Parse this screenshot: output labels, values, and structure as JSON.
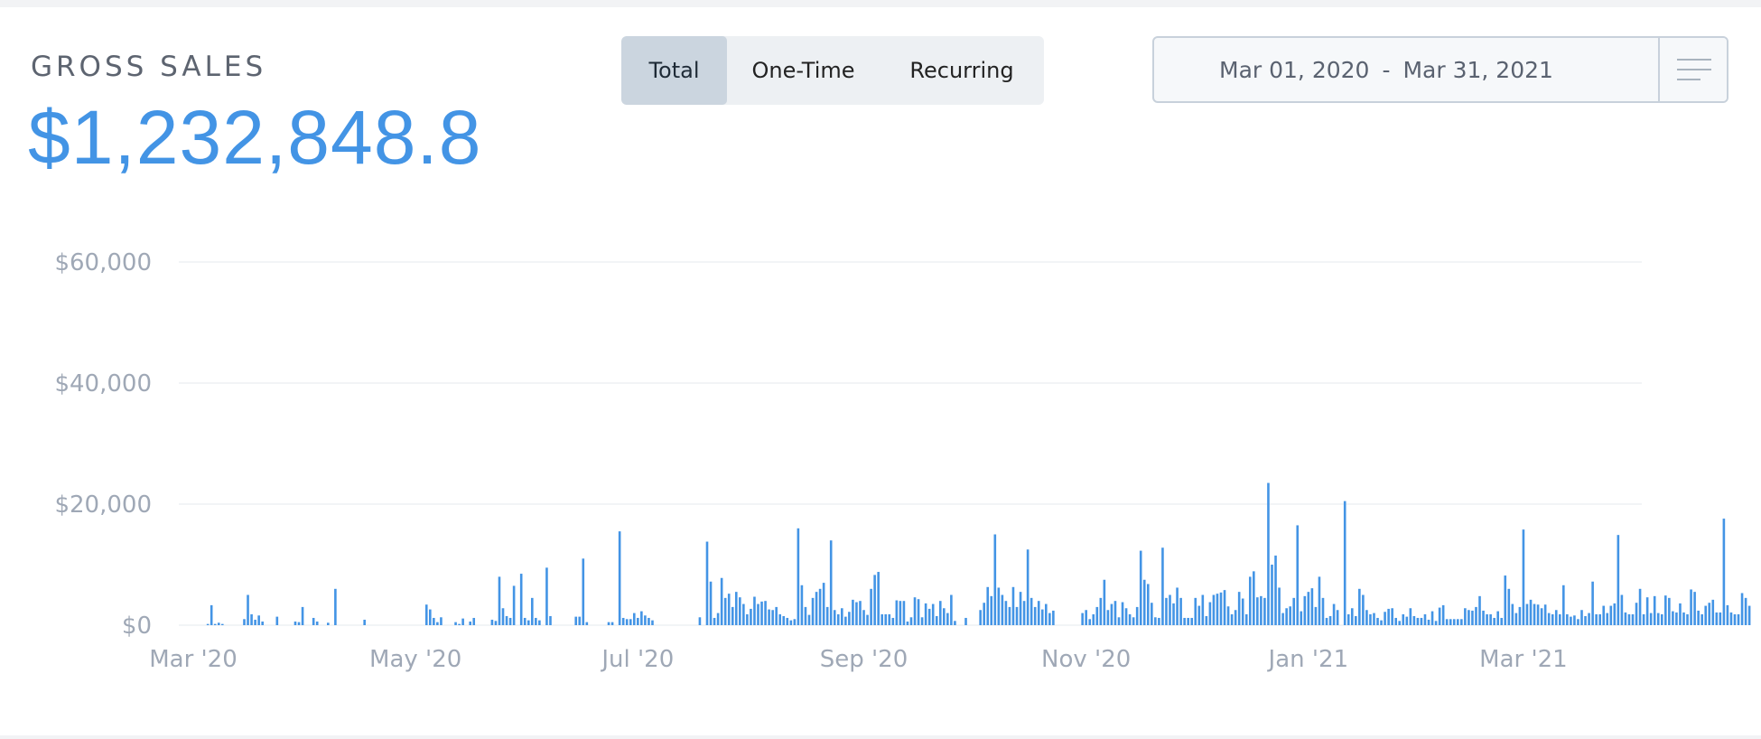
{
  "header": {
    "title": "GROSS SALES",
    "amount": "$1,232,848.8"
  },
  "tabs": [
    {
      "label": "Total",
      "active": true
    },
    {
      "label": "One-Time",
      "active": false
    },
    {
      "label": "Recurring",
      "active": false
    }
  ],
  "date_range": {
    "start": "Mar 01, 2020",
    "separator": "-",
    "end": "Mar 31, 2021",
    "menu_icon": "hamburger-menu-icon"
  },
  "colors": {
    "accent": "#4394e5",
    "bar": "#4394e5",
    "grid": "#e6eaee",
    "axis_text": "#9fa8b6",
    "title_text": "#5d6470",
    "tab_active_bg": "#cbd5df",
    "tab_bg": "#edf0f3"
  },
  "chart_data": {
    "type": "bar",
    "x_start": "2020-03-01",
    "y_ticks": [
      0,
      20000,
      40000,
      60000
    ],
    "y_tick_labels": [
      "$0",
      "$20,000",
      "$40,000",
      "$60,000"
    ],
    "ylim": [
      0,
      60000
    ],
    "grid": true,
    "x_tick_labels": [
      {
        "label": "Mar '20",
        "date": "2020-03-01"
      },
      {
        "label": "May '20",
        "date": "2020-05-01"
      },
      {
        "label": "Jul '20",
        "date": "2020-07-01"
      },
      {
        "label": "Sep '20",
        "date": "2020-09-01"
      },
      {
        "label": "Nov '20",
        "date": "2020-11-01"
      },
      {
        "label": "Jan '21",
        "date": "2021-01-01"
      },
      {
        "label": "Mar '21",
        "date": "2021-03-01"
      }
    ],
    "values": [
      0,
      0,
      0,
      0,
      200,
      3300,
      200,
      400,
      200,
      0,
      0,
      0,
      0,
      0,
      1000,
      5000,
      1800,
      900,
      1600,
      600,
      0,
      0,
      0,
      1400,
      0,
      0,
      0,
      0,
      600,
      500,
      3000,
      0,
      0,
      1200,
      600,
      0,
      0,
      400,
      0,
      6000,
      0,
      0,
      0,
      0,
      0,
      0,
      0,
      900,
      0,
      0,
      0,
      0,
      0,
      0,
      0,
      0,
      0,
      0,
      0,
      0,
      0,
      0,
      0,
      0,
      3400,
      2600,
      1200,
      500,
      1300,
      0,
      0,
      0,
      500,
      200,
      1100,
      0,
      600,
      1200,
      0,
      0,
      0,
      0,
      900,
      700,
      8000,
      2800,
      1500,
      1200,
      6500,
      0,
      8500,
      1200,
      800,
      4500,
      1200,
      800,
      0,
      9500,
      1500,
      0,
      0,
      0,
      0,
      0,
      0,
      1400,
      1400,
      11000,
      500,
      0,
      0,
      0,
      0,
      0,
      500,
      500,
      0,
      15500,
      1200,
      1000,
      1000,
      2000,
      1200,
      2300,
      1600,
      1200,
      800,
      0,
      0,
      0,
      0,
      0,
      0,
      0,
      0,
      0,
      0,
      0,
      0,
      1300,
      0,
      13800,
      7200,
      1200,
      2000,
      7800,
      4500,
      5200,
      3000,
      5500,
      4600,
      3500,
      1800,
      2700,
      4700,
      3500,
      3900,
      4000,
      2600,
      2500,
      3000,
      1800,
      1500,
      1200,
      800,
      1000,
      16000,
      6600,
      3000,
      1700,
      4500,
      5500,
      6000,
      7000,
      3000,
      14000,
      2500,
      1800,
      2800,
      1400,
      2200,
      4200,
      3800,
      4000,
      2500,
      1700,
      6000,
      8300,
      8800,
      1800,
      1800,
      1800,
      1200,
      4100,
      4000,
      4000,
      600,
      1300,
      4600,
      4300,
      1300,
      3600,
      2700,
      3500,
      1500,
      4000,
      2800,
      2000,
      5000,
      700,
      0,
      0,
      1200,
      0,
      0,
      0,
      2500,
      3700,
      6300,
      4800,
      15000,
      6200,
      5000,
      4000,
      3000,
      6300,
      3000,
      5500,
      4000,
      12500,
      4500,
      3000,
      4000,
      2600,
      3500,
      2000,
      2400,
      0,
      0,
      0,
      0,
      0,
      0,
      0,
      2000,
      2500,
      1000,
      1800,
      3000,
      4500,
      7500,
      2500,
      3500,
      4000,
      1300,
      3800,
      2800,
      1800,
      1300,
      3000,
      12300,
      7500,
      6800,
      3700,
      1300,
      1200,
      12800,
      4500,
      5000,
      3600,
      6200,
      4500,
      1200,
      1200,
      1200,
      4500,
      3200,
      5000,
      1500,
      3800,
      5000,
      5200,
      5400,
      5800,
      3100,
      1800,
      2500,
      5500,
      4400,
      1800,
      8000,
      8900,
      4600,
      4800,
      4500,
      23500,
      10000,
      11500,
      6200,
      2000,
      2800,
      3100,
      4500,
      16500,
      2300,
      4800,
      5500,
      6100,
      3000,
      8000,
      4500,
      1200,
      1500,
      3500,
      2500,
      0,
      20500,
      1800,
      2800,
      1500,
      6000,
      5000,
      2500,
      1800,
      2000,
      1200,
      800,
      2200,
      2700,
      2800,
      1200,
      700,
      1800,
      1400,
      2800,
      1500,
      1200,
      1200,
      1800,
      900,
      2300,
      700,
      2900,
      3300,
      1000,
      1000,
      1000,
      1000,
      1000,
      2800,
      2500,
      2400,
      3000,
      4800,
      2400,
      1800,
      1800,
      1200,
      2300,
      1200,
      8200,
      6000,
      3500,
      2000,
      3000,
      15800,
      3500,
      4200,
      3500,
      3400,
      2800,
      3400,
      2000,
      1800,
      2500,
      1800,
      6600,
      1800,
      1400,
      1600,
      1000,
      2500,
      1500,
      2000,
      7200,
      1800,
      1800,
      3200,
      2000,
      3200,
      3600,
      14900,
      5000,
      2100,
      1800,
      1800,
      3700,
      6000,
      1800,
      4600,
      2000,
      4800,
      2000,
      1800,
      4900,
      4500,
      2300,
      2100,
      3600,
      2100,
      1800,
      5900,
      5500,
      2400,
      1800,
      3200,
      3700,
      4200,
      2100,
      2100,
      17600,
      3300,
      2100,
      1800,
      1800,
      5300,
      4500,
      3200
    ]
  }
}
